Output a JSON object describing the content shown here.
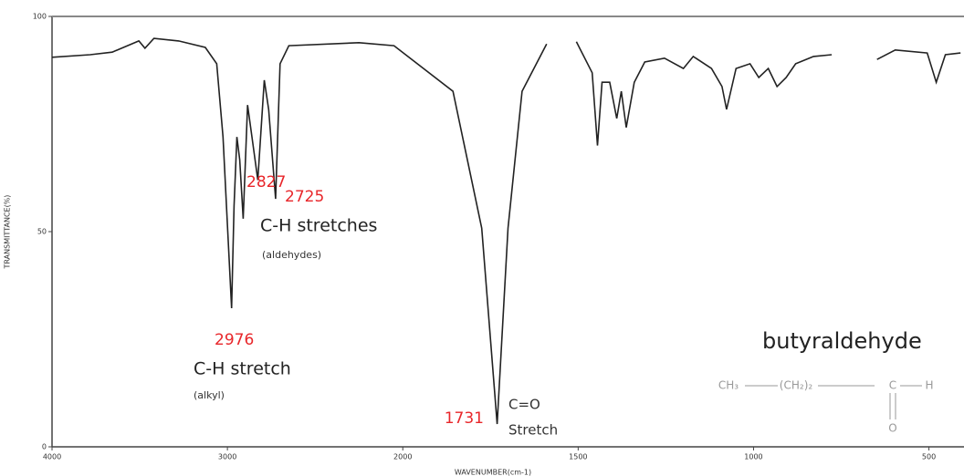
{
  "chart_data": {
    "type": "line",
    "x_label": "WAVENUMBER(cm-1)",
    "y_label": "TRANSMITTANCE(%)",
    "x": [
      4000,
      3783,
      3657,
      3505,
      3470,
      3419,
      3278,
      3126,
      3061,
      3025,
      2976,
      2962,
      2946,
      2930,
      2910,
      2885,
      2860,
      2827,
      2790,
      2765,
      2725,
      2700,
      2650,
      2250,
      2050,
      1857,
      1775,
      1731,
      1700,
      1660,
      1590,
      1550,
      1505,
      1460,
      1445,
      1432,
      1410,
      1390,
      1377,
      1363,
      1340,
      1310,
      1254,
      1200,
      1172,
      1120,
      1090,
      1077,
      1050,
      1010,
      985,
      958,
      933,
      907,
      880,
      829,
      777,
      700,
      648,
      596,
      505,
      479,
      453,
      410
    ],
    "values": [
      90.5,
      91.1,
      91.7,
      94.3,
      92.6,
      94.9,
      94.3,
      92.8,
      89.0,
      72.0,
      32.2,
      56,
      72,
      66.7,
      53,
      79.4,
      72,
      62,
      85.2,
      78.4,
      57.6,
      89,
      93.2,
      93.9,
      93.2,
      82.6,
      50.8,
      5.3,
      50.8,
      82.6,
      93.6,
      null,
      94.1,
      86.9,
      70,
      84.7,
      84.7,
      76.3,
      82.6,
      74.2,
      84.7,
      89.4,
      90.3,
      87.9,
      90.7,
      87.9,
      83.7,
      78.4,
      87.9,
      89,
      85.8,
      87.9,
      83.7,
      85.8,
      89,
      90.7,
      91.1,
      null,
      90,
      92.2,
      91.5,
      84.7,
      91.1,
      91.5
    ],
    "color": "#222222",
    "xlim": [
      4000,
      400
    ],
    "xticks": [
      4000,
      3000,
      2000,
      1500,
      1000,
      500
    ],
    "ylim": [
      0,
      100
    ],
    "yticks": [
      0,
      50,
      100
    ],
    "peaks": [
      2976,
      2827,
      2725,
      1731
    ],
    "annotations": [
      "C-H  stretches",
      "(aldehydes)",
      "C-H stretch",
      "(alkyl)",
      "C=O",
      "Stretch",
      "butyraldehyde"
    ],
    "formula": {
      "groups": [
        "CH₃",
        "(CH₂)₂",
        "C",
        "H"
      ],
      "oxygen": "O"
    }
  }
}
